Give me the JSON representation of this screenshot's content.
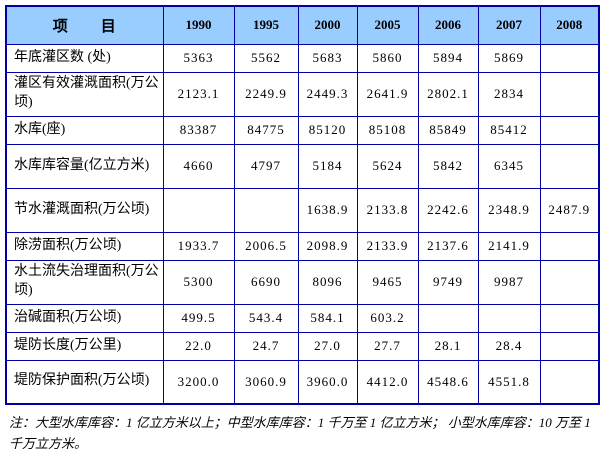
{
  "colors": {
    "header_bg": "#99ccff",
    "border": "#0000a0",
    "text": "#000000"
  },
  "table": {
    "header": {
      "item_label": "项　　目",
      "years": [
        "1990",
        "1995",
        "2000",
        "2005",
        "2006",
        "2007",
        "2008"
      ]
    },
    "rows": [
      {
        "label": "年底灌区数 (处)",
        "values": [
          "5363",
          "5562",
          "5683",
          "5860",
          "5894",
          "5869",
          ""
        ]
      },
      {
        "label": "灌区有效灌溉面积(万公顷)",
        "values": [
          "2123.1",
          "2249.9",
          "2449.3",
          "2641.9",
          "2802.1",
          "2834",
          ""
        ]
      },
      {
        "label": "水库(座)",
        "values": [
          "83387",
          "84775",
          "85120",
          "85108",
          "85849",
          "85412",
          ""
        ]
      },
      {
        "label": "水库库容量(亿立方米)",
        "values": [
          "4660",
          "4797",
          "5184",
          "5624",
          "5842",
          "6345",
          ""
        ]
      },
      {
        "label": "节水灌溉面积(万公顷)",
        "values": [
          "",
          "",
          "1638.9",
          "2133.8",
          "2242.6",
          "2348.9",
          "2487.9"
        ]
      },
      {
        "label": "除涝面积(万公顷)",
        "values": [
          "1933.7",
          "2006.5",
          "2098.9",
          "2133.9",
          "2137.6",
          "2141.9",
          ""
        ]
      },
      {
        "label": "水土流失治理面积(万公顷)",
        "values": [
          "5300",
          "6690",
          "8096",
          "9465",
          "9749",
          "9987",
          ""
        ]
      },
      {
        "label": "治碱面积(万公顷)",
        "values": [
          "499.5",
          "543.4",
          "584.1",
          "603.2",
          "",
          "",
          ""
        ]
      },
      {
        "label": "堤防长度(万公里)",
        "values": [
          "22.0",
          "24.7",
          "27.0",
          "27.7",
          "28.1",
          "28.4",
          ""
        ]
      },
      {
        "label": "堤防保护面积(万公顷)",
        "values": [
          "3200.0",
          "3060.9",
          "3960.0",
          "4412.0",
          "4548.6",
          "4551.8",
          ""
        ]
      }
    ]
  },
  "footnote": "注：大型水库库容：1 亿立方米以上；中型水库库容：1 千万至 1 亿立方米； 小型水库库容：10 万至 1 千万立方米。"
}
